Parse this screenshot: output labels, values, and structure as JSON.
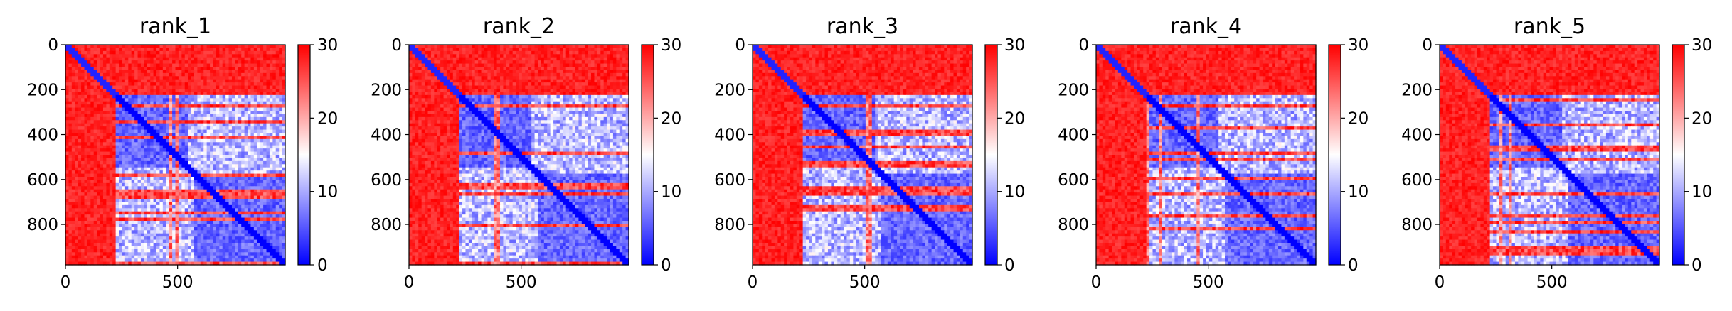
{
  "chart_data": [
    {
      "type": "heatmap",
      "title": "rank_1",
      "x_ticks": [
        0,
        500
      ],
      "y_ticks": [
        0,
        200,
        400,
        600,
        800
      ],
      "xlim": [
        0,
        980
      ],
      "ylim": [
        980,
        0
      ],
      "colorbar": {
        "ticks": [
          0,
          10,
          20,
          30
        ],
        "range": [
          0,
          30
        ],
        "colormap": [
          "#0000ff",
          "#ffffff",
          "#ff0000"
        ]
      },
      "features": {
        "n_term_split": 230,
        "diag_color": "#0000ff",
        "blocks": [
          [
            230,
            530
          ],
          [
            580,
            980
          ]
        ]
      }
    },
    {
      "type": "heatmap",
      "title": "rank_2",
      "x_ticks": [
        0,
        500
      ],
      "y_ticks": [
        0,
        200,
        400,
        600,
        800
      ],
      "xlim": [
        0,
        980
      ],
      "ylim": [
        980,
        0
      ],
      "colorbar": {
        "ticks": [
          0,
          10,
          20,
          30
        ],
        "range": [
          0,
          30
        ],
        "colormap": [
          "#0000ff",
          "#ffffff",
          "#ff0000"
        ]
      },
      "features": {
        "n_term_split": 230,
        "diag_color": "#0000ff",
        "blocks": [
          [
            230,
            530
          ],
          [
            580,
            980
          ]
        ]
      }
    },
    {
      "type": "heatmap",
      "title": "rank_3",
      "x_ticks": [
        0,
        500
      ],
      "y_ticks": [
        0,
        200,
        400,
        600,
        800
      ],
      "xlim": [
        0,
        980
      ],
      "ylim": [
        980,
        0
      ],
      "colorbar": {
        "ticks": [
          0,
          10,
          20,
          30
        ],
        "range": [
          0,
          30
        ],
        "colormap": [
          "#0000ff",
          "#ffffff",
          "#ff0000"
        ]
      },
      "features": {
        "n_term_split": 230,
        "diag_color": "#0000ff",
        "blocks": [
          [
            230,
            530
          ],
          [
            580,
            980
          ]
        ]
      }
    },
    {
      "type": "heatmap",
      "title": "rank_4",
      "x_ticks": [
        0,
        500
      ],
      "y_ticks": [
        0,
        200,
        400,
        600,
        800
      ],
      "xlim": [
        0,
        980
      ],
      "ylim": [
        980,
        0
      ],
      "colorbar": {
        "ticks": [
          0,
          10,
          20,
          30
        ],
        "range": [
          0,
          30
        ],
        "colormap": [
          "#0000ff",
          "#ffffff",
          "#ff0000"
        ]
      },
      "features": {
        "n_term_split": 230,
        "diag_color": "#0000ff",
        "blocks": [
          [
            230,
            530
          ],
          [
            580,
            980
          ]
        ]
      }
    },
    {
      "type": "heatmap",
      "title": "rank_5",
      "x_ticks": [
        0,
        500
      ],
      "y_ticks": [
        0,
        200,
        400,
        600,
        800
      ],
      "xlim": [
        0,
        980
      ],
      "ylim": [
        980,
        0
      ],
      "colorbar": {
        "ticks": [
          0,
          10,
          20,
          30
        ],
        "range": [
          0,
          30
        ],
        "colormap": [
          "#0000ff",
          "#ffffff",
          "#ff0000"
        ]
      },
      "features": {
        "n_term_split": 230,
        "diag_color": "#0000ff",
        "blocks": [
          [
            230,
            530
          ],
          [
            580,
            980
          ]
        ]
      }
    }
  ]
}
